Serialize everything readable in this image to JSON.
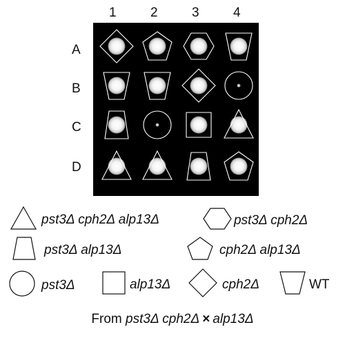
{
  "columns": [
    "1",
    "2",
    "3",
    "4"
  ],
  "rows": [
    "A",
    "B",
    "C",
    "D"
  ],
  "grid": [
    [
      {
        "shape": "diamond",
        "colony": "large"
      },
      {
        "shape": "pentagon",
        "colony": "large"
      },
      {
        "shape": "hexagon",
        "colony": "large"
      },
      {
        "shape": "trapezoid-inverted",
        "colony": "large"
      }
    ],
    [
      {
        "shape": "trapezoid-inverted",
        "colony": "large"
      },
      {
        "shape": "trapezoid-inverted",
        "colony": "large"
      },
      {
        "shape": "diamond",
        "colony": "large"
      },
      {
        "shape": "circle",
        "colony": "tiny"
      }
    ],
    [
      {
        "shape": "trapezoid",
        "colony": "large"
      },
      {
        "shape": "circle",
        "colony": "tiny"
      },
      {
        "shape": "square",
        "colony": "large"
      },
      {
        "shape": "triangle",
        "colony": "large"
      }
    ],
    [
      {
        "shape": "triangle",
        "colony": "large"
      },
      {
        "shape": "triangle",
        "colony": "large"
      },
      {
        "shape": "trapezoid",
        "colony": "large"
      },
      {
        "shape": "pentagon",
        "colony": "large"
      }
    ]
  ],
  "legend": [
    {
      "shape": "triangle",
      "label": "pst3Δ cph2Δ alp13Δ"
    },
    {
      "shape": "hexagon",
      "label": "pst3Δ cph2Δ"
    },
    {
      "shape": "trapezoid",
      "label": "pst3Δ alp13Δ"
    },
    {
      "shape": "pentagon",
      "label": "cph2Δ alp13Δ"
    },
    {
      "shape": "circle",
      "label": "pst3Δ"
    },
    {
      "shape": "square",
      "label": "alp13Δ"
    },
    {
      "shape": "diamond",
      "label": "cph2Δ"
    },
    {
      "shape": "trapezoid-inverted",
      "label": "WT"
    }
  ],
  "footer": {
    "prefix": "From ",
    "parent1": "pst3Δ cph2Δ",
    "cross": "×",
    "parent2": "alp13Δ"
  }
}
